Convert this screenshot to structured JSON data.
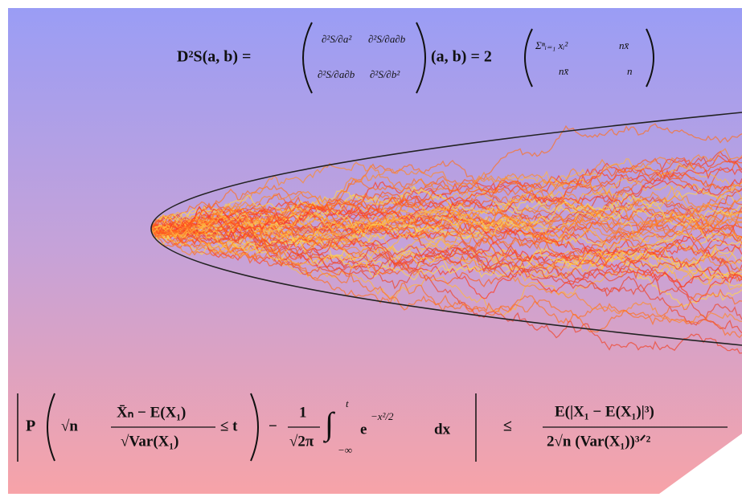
{
  "top_formula": {
    "lhs": "D²S(a, b) =",
    "matrix": [
      "∂²S/∂a²",
      "∂²S/∂a∂b",
      "∂²S/∂a∂b",
      "∂²S/∂b²"
    ],
    "middle": "(a, b) = 2",
    "result": [
      "Σⁿᵢ₌₁ xᵢ²",
      "nx̄",
      "nx̄",
      "n"
    ]
  },
  "bottom_formula": {
    "prob": "P",
    "sqrt_n": "√n",
    "numerator": "X̄ₙ − E(X₁)",
    "denominator": "√Var(X₁)",
    "leq_t": "≤ t",
    "minus": "−",
    "one": "1",
    "sqrt_2pi": "√2π",
    "integral": "∫",
    "upper_limit": "t",
    "lower_limit": "−∞",
    "integrand": "e",
    "exponent": "−x²/2",
    "dx": "dx",
    "leq": "≤",
    "rhs_numerator": "E(|X₁ − E(X₁)|³)",
    "rhs_denominator": "2√n (Var(X₁))³ᐟ²"
  }
}
